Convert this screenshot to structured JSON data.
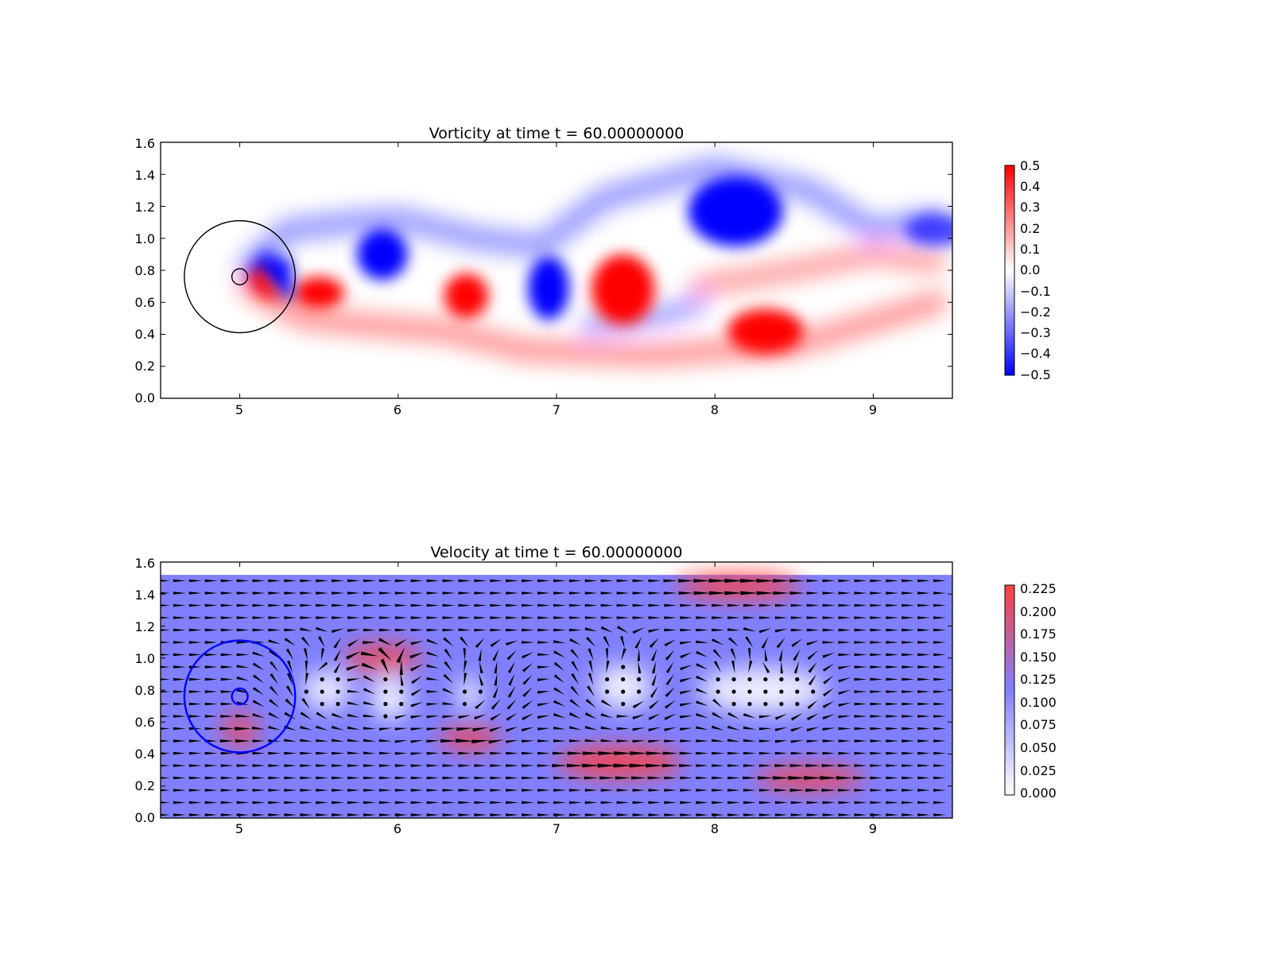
{
  "chart_data": [
    {
      "type": "heatmap",
      "title": "Vorticity at time t =    60.00000000",
      "xlim": [
        4.5,
        9.5
      ],
      "ylim": [
        0.0,
        1.6
      ],
      "xticks": [
        "5",
        "6",
        "7",
        "8",
        "9"
      ],
      "yticks": [
        "0.0",
        "0.2",
        "0.4",
        "0.6",
        "0.8",
        "1.0",
        "1.2",
        "1.4",
        "1.6"
      ],
      "colormap": "bwr",
      "colors": {
        "low": "#0000ff",
        "mid": "#ffffff",
        "high": "#ff0000"
      },
      "colorbar": {
        "range": [
          -0.5,
          0.5
        ],
        "ticks": [
          "0.5",
          "0.4",
          "0.3",
          "0.2",
          "0.1",
          "0.0",
          "−0.1",
          "−0.2",
          "−0.3",
          "−0.4",
          "−0.5"
        ]
      },
      "circles": [
        {
          "cx": 5.0,
          "cy": 0.76,
          "r": 0.35,
          "color": "#000000"
        },
        {
          "cx": 5.0,
          "cy": 0.76,
          "r": 0.05,
          "color": "#000000"
        }
      ],
      "vortices": [
        {
          "x": 5.5,
          "y": 0.66,
          "strength": 0.5
        },
        {
          "x": 5.9,
          "y": 0.9,
          "strength": -0.5
        },
        {
          "x": 6.43,
          "y": 0.64,
          "strength": 0.5
        },
        {
          "x": 6.95,
          "y": 0.69,
          "strength": -0.5
        },
        {
          "x": 7.42,
          "y": 0.68,
          "strength": 0.5
        },
        {
          "x": 8.13,
          "y": 1.17,
          "strength": -0.5
        },
        {
          "x": 8.32,
          "y": 0.42,
          "strength": 0.5
        },
        {
          "x": 9.4,
          "y": 1.05,
          "strength": -0.35
        }
      ]
    },
    {
      "type": "heatmap",
      "title": "Velocity at time t =    60.00000000",
      "xlim": [
        4.5,
        9.5
      ],
      "ylim": [
        0.0,
        1.6
      ],
      "xticks": [
        "5",
        "6",
        "7",
        "8",
        "9"
      ],
      "yticks": [
        "0.0",
        "0.2",
        "0.4",
        "0.6",
        "0.8",
        "1.0",
        "1.2",
        "1.4",
        "1.6"
      ],
      "field_top": 1.52,
      "colormap": "white-blue-red",
      "colors": {
        "low": "#ffffff",
        "mid": "#8080ff",
        "high": "#ff4040",
        "arrow": "#000000"
      },
      "colorbar": {
        "range": [
          0.0,
          0.225
        ],
        "ticks": [
          "0.225",
          "0.200",
          "0.175",
          "0.150",
          "0.125",
          "0.100",
          "0.075",
          "0.050",
          "0.025",
          "0.000"
        ]
      },
      "circles": [
        {
          "cx": 5.0,
          "cy": 0.76,
          "r": 0.35,
          "color": "#0000ff"
        },
        {
          "cx": 5.0,
          "cy": 0.76,
          "r": 0.05,
          "color": "#0000ff"
        }
      ],
      "fast_regions": [
        {
          "x": 8.15,
          "y": 1.45,
          "speed": 0.225
        },
        {
          "x": 5.9,
          "y": 1.0,
          "speed": 0.19
        },
        {
          "x": 7.4,
          "y": 0.35,
          "speed": 0.22
        },
        {
          "x": 6.45,
          "y": 0.5,
          "speed": 0.2
        },
        {
          "x": 5.0,
          "y": 0.55,
          "speed": 0.17
        },
        {
          "x": 8.6,
          "y": 0.25,
          "speed": 0.2
        }
      ],
      "slow_regions": [
        {
          "x": 5.55,
          "y": 0.8
        },
        {
          "x": 5.95,
          "y": 0.75
        },
        {
          "x": 6.45,
          "y": 0.78
        },
        {
          "x": 7.42,
          "y": 0.82
        },
        {
          "x": 8.3,
          "y": 0.8
        }
      ]
    }
  ]
}
